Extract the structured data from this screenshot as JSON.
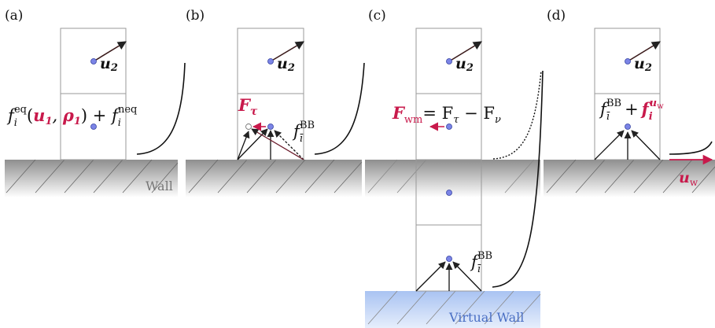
{
  "panels": {
    "a": {
      "label": "(a)",
      "u_top": "u",
      "u_top_sub": "2",
      "formula": {
        "f": "f",
        "i": "i",
        "eq": "eq",
        "open": "(",
        "u": "u",
        "u_sub": "1",
        "comma": ", ",
        "rho": "ρ",
        "rho_sub": "1",
        "close": ")",
        "plus": " + f",
        "i2": "i",
        "neq": "neq"
      },
      "wall_label": "Wall"
    },
    "b": {
      "label": "(b)",
      "u_top": "u",
      "u_top_sub": "2",
      "force": "F",
      "force_sub": "τ",
      "fbb": "f",
      "fbb_sub": "ī",
      "fbb_sup": "BB"
    },
    "c": {
      "label": "(c)",
      "u_top": "u",
      "u_top_sub": "2",
      "force": "F",
      "force_sub": "wm",
      "force_rhs": "= F",
      "tau": "τ",
      "minus": " − F",
      "nu": "ν",
      "fbb": "f",
      "fbb_sub": "ī",
      "fbb_sup": "BB",
      "virtual_wall_label": "Virtual Wall"
    },
    "d": {
      "label": "(d)",
      "u_top": "u",
      "u_top_sub": "2",
      "fbb": "f",
      "fbb_sub": "ī",
      "fbb_sup": "BB",
      "plus": "+",
      "fu": "f",
      "fu_sub": "i",
      "fu_sup": "u",
      "fu_sup_sub": "w",
      "uw": "u",
      "uw_sub": "w"
    }
  },
  "colors": {
    "accent": "#c8194b",
    "node": "#7b84e6",
    "arrow_dark": "#3a1a1a",
    "cell_border": "#999999",
    "wall_top": "#8c8c8c",
    "virtual_wall": "#c9d9f7"
  }
}
